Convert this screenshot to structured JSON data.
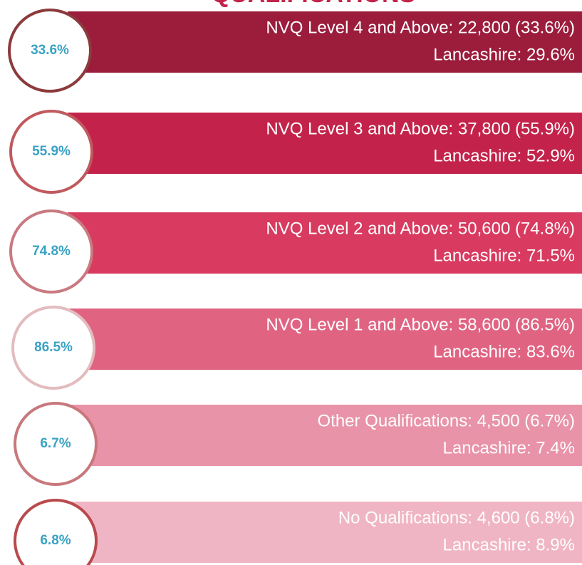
{
  "title": "QUALIFICATIONS",
  "items": [
    {
      "circle": "33.6%",
      "line1": "NVQ Level 4 and Above: 22,800 (33.6%)",
      "line2": "Lancashire: 29.6%",
      "bar_color": "#9b1c3b",
      "ring_color": "#8c3a3c"
    },
    {
      "circle": "55.9%",
      "line1": "NVQ Level 3 and Above: 37,800 (55.9%)",
      "line2": "Lancashire: 52.9%",
      "bar_color": "#c3234a",
      "ring_color": "#c05a5e"
    },
    {
      "circle": "74.8%",
      "line1": "NVQ Level 2 and Above: 50,600 (74.8%)",
      "line2": "Lancashire: 71.5%",
      "bar_color": "#d83a60",
      "ring_color": "#c97a80"
    },
    {
      "circle": "86.5%",
      "line1": "NVQ Level 1 and Above: 58,600 (86.5%)",
      "line2": "Lancashire: 83.6%",
      "bar_color": "#e06482",
      "ring_color": "#e2bcbe"
    },
    {
      "circle": "6.7%",
      "line1": "Other Qualifications: 4,500 (6.7%)",
      "line2": "Lancashire: 7.4%",
      "bar_color": "#e893a8",
      "ring_color": "#c8787c"
    },
    {
      "circle": "6.8%",
      "line1": "No Qualifications: 4,600 (6.8%)",
      "line2": "Lancashire: 8.9%",
      "bar_color": "#f0b5c5",
      "ring_color": "#b84a4e"
    }
  ]
}
